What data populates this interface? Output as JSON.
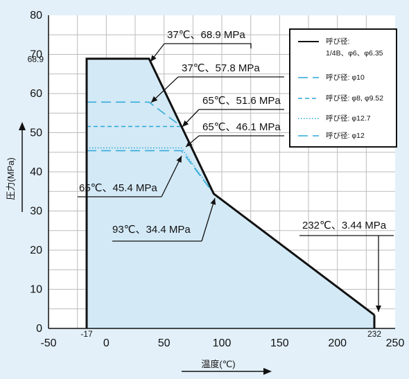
{
  "chart_data": {
    "type": "area",
    "xlabel": "温度(℃)",
    "ylabel": "圧力(MPa)",
    "xlim": [
      -50,
      250
    ],
    "ylim": [
      0,
      80
    ],
    "x_ticks": [
      "-50",
      "0",
      "50",
      "100",
      "150",
      "200",
      "250"
    ],
    "y_ticks": [
      "0",
      "10",
      "20",
      "30",
      "40",
      "50",
      "60",
      "70",
      "80"
    ],
    "extra_x_ticks": [
      {
        "value": -17,
        "label": "-17"
      },
      {
        "value": 232,
        "label": "232"
      }
    ],
    "extra_y_ticks": [
      {
        "value": 68.9,
        "label": "68.9"
      }
    ],
    "grid": true,
    "legend_position": "top-right",
    "series": [
      {
        "name": "呼び径:\n1/4B、φ6、φ6.35",
        "style": "solid",
        "color": "#111111",
        "points": [
          [
            -17,
            0
          ],
          [
            -17,
            68.9
          ],
          [
            37,
            68.9
          ],
          [
            93,
            34.4
          ],
          [
            232,
            3.44
          ],
          [
            232,
            0
          ]
        ]
      },
      {
        "name": "呼び径: φ10",
        "style": "longdash",
        "color": "#2aa8d8",
        "points": [
          [
            -17,
            57.8
          ],
          [
            37,
            57.8
          ],
          [
            65,
            51.6
          ],
          [
            93,
            34.4
          ]
        ]
      },
      {
        "name": "呼び径: φ8, φ9.52",
        "style": "dash",
        "color": "#2aa8d8",
        "points": [
          [
            -17,
            51.6
          ],
          [
            65,
            51.6
          ]
        ]
      },
      {
        "name": "呼び径: φ12.7",
        "style": "dot",
        "color": "#2aa8d8",
        "points": [
          [
            -17,
            46.1
          ],
          [
            65,
            46.1
          ],
          [
            93,
            34.4
          ]
        ]
      },
      {
        "name": "呼び径: φ12",
        "style": "longdash",
        "color": "#2aa8d8",
        "points": [
          [
            -17,
            45.4
          ],
          [
            65,
            45.4
          ],
          [
            93,
            34.4
          ]
        ]
      }
    ],
    "annotations": [
      {
        "text": "37℃、68.9 MPa",
        "x": 37,
        "y": 68.9
      },
      {
        "text": "37℃、57.8 MPa",
        "x": 37,
        "y": 57.8
      },
      {
        "text": "65℃、51.6 MPa",
        "x": 65,
        "y": 51.6
      },
      {
        "text": "65℃、46.1 MPa",
        "x": 65,
        "y": 46.1
      },
      {
        "text": "65℃、45.4 MPa",
        "x": 65,
        "y": 45.4
      },
      {
        "text": "93℃、34.4 MPa",
        "x": 93,
        "y": 34.4
      },
      {
        "text": "232℃、3.44 MPa",
        "x": 232,
        "y": 3.44
      }
    ],
    "colors": {
      "page_bg": "#e3f0f9",
      "plot_bg": "#ffffff",
      "fill": "#d3e9f6",
      "grid": "#bbbbbb",
      "accent": "#2aa8d8"
    }
  }
}
